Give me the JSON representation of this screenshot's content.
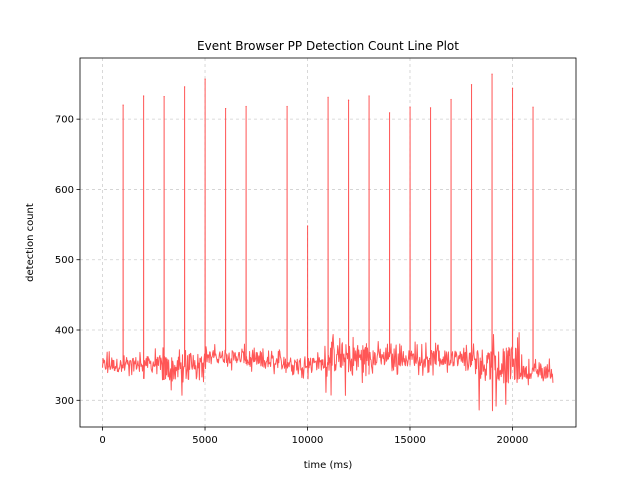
{
  "chart_data": {
    "type": "line",
    "title": "Event Browser PP Detection Count Line Plot",
    "xlabel": "time (ms)",
    "ylabel": "detection count",
    "xlim": [
      -1100,
      23100
    ],
    "ylim": [
      262,
      787
    ],
    "xticks": [
      0,
      5000,
      10000,
      15000,
      20000
    ],
    "yticks": [
      300,
      400,
      500,
      600,
      700
    ],
    "grid": true,
    "series": [
      {
        "color": "#ff4d4d",
        "baseline_segments": [
          {
            "x": [
              0,
              1500
            ],
            "center": 350,
            "low": 330,
            "high": 372
          },
          {
            "x": [
              1500,
              2800
            ],
            "center": 352,
            "low": 328,
            "high": 375
          },
          {
            "x": [
              2800,
              4200
            ],
            "center": 345,
            "low": 300,
            "high": 385
          },
          {
            "x": [
              4200,
              5000
            ],
            "center": 355,
            "low": 325,
            "high": 380
          },
          {
            "x": [
              5000,
              7000
            ],
            "center": 362,
            "low": 340,
            "high": 380
          },
          {
            "x": [
              7000,
              9000
            ],
            "center": 355,
            "low": 335,
            "high": 375
          },
          {
            "x": [
              9000,
              10800
            ],
            "center": 352,
            "low": 330,
            "high": 372
          },
          {
            "x": [
              10800,
              13000
            ],
            "center": 360,
            "low": 305,
            "high": 395
          },
          {
            "x": [
              13000,
              18200
            ],
            "center": 360,
            "low": 335,
            "high": 385
          },
          {
            "x": [
              18200,
              20500
            ],
            "center": 350,
            "low": 285,
            "high": 400
          },
          {
            "x": [
              20500,
              22000
            ],
            "center": 340,
            "low": 322,
            "high": 362
          }
        ],
        "spikes": [
          {
            "x": 1000,
            "y": 720
          },
          {
            "x": 2000,
            "y": 733
          },
          {
            "x": 3000,
            "y": 732
          },
          {
            "x": 4000,
            "y": 746
          },
          {
            "x": 5000,
            "y": 757
          },
          {
            "x": 6000,
            "y": 715
          },
          {
            "x": 7000,
            "y": 718
          },
          {
            "x": 9000,
            "y": 718
          },
          {
            "x": 10000,
            "y": 548
          },
          {
            "x": 11000,
            "y": 731
          },
          {
            "x": 12000,
            "y": 727
          },
          {
            "x": 13000,
            "y": 733
          },
          {
            "x": 14000,
            "y": 709
          },
          {
            "x": 15000,
            "y": 717
          },
          {
            "x": 16000,
            "y": 716
          },
          {
            "x": 17000,
            "y": 728
          },
          {
            "x": 18000,
            "y": 749
          },
          {
            "x": 19000,
            "y": 764
          },
          {
            "x": 20000,
            "y": 744
          },
          {
            "x": 21000,
            "y": 717
          }
        ]
      }
    ]
  }
}
